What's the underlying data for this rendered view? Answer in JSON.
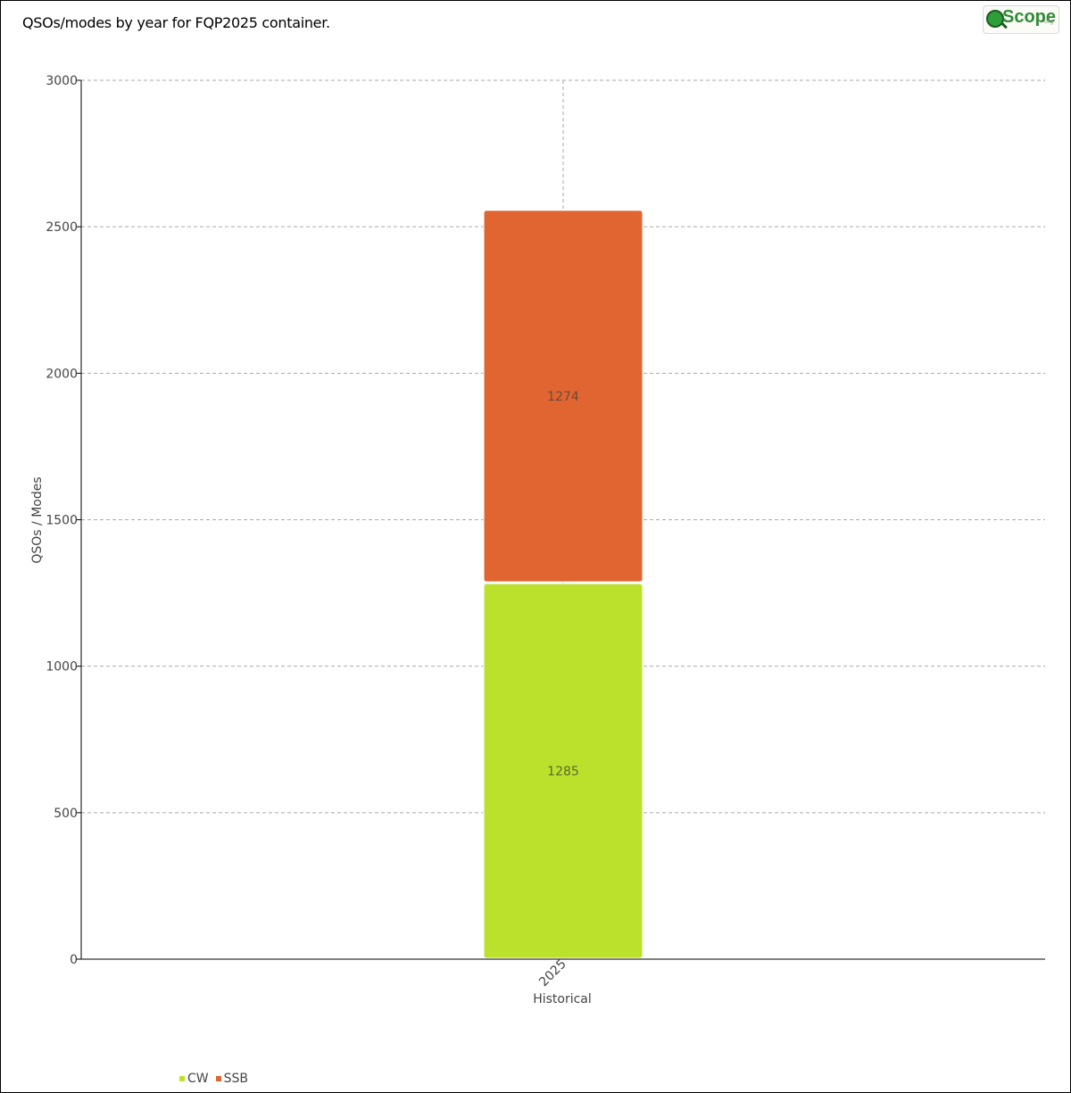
{
  "title": "QSOs/modes by year for FQP2025 container.",
  "logo": {
    "text": "Scope",
    "sub": "org",
    "icon": "magnifier-globe-icon"
  },
  "colors": {
    "CW": "#bce12d",
    "SSB": "#e06530",
    "grid": "#aaaaaa",
    "axis": "#000000"
  },
  "chart_data": {
    "type": "bar",
    "stacked": true,
    "categories": [
      "2025"
    ],
    "series": [
      {
        "name": "CW",
        "values": [
          1285
        ],
        "labels": [
          "1285"
        ]
      },
      {
        "name": "SSB",
        "values": [
          1274
        ],
        "labels": [
          "1274"
        ]
      }
    ],
    "xlabel": "Historical",
    "ylabel": "QSOs / Modes",
    "ylim": [
      0,
      3000
    ],
    "yticks": [
      "0",
      "500",
      "1000",
      "1500",
      "2000",
      "2500",
      "3000"
    ],
    "grid": true,
    "legend_position": "bottom-left"
  }
}
